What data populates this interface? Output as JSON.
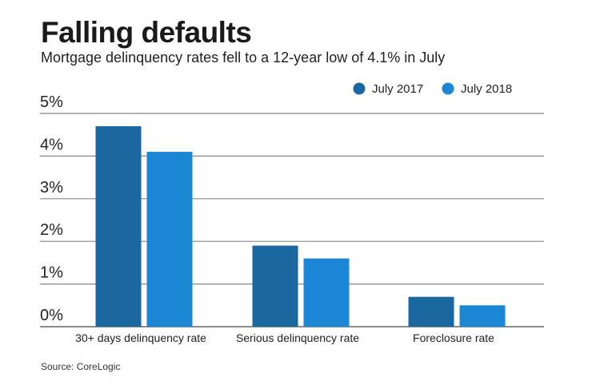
{
  "chart_data": {
    "type": "bar",
    "title": "Falling defaults",
    "subtitle": "Mortgage delinquency rates fell to a 12-year low of 4.1% in July",
    "categories": [
      "30+ days delinquency rate",
      "Serious delinquency rate",
      "Foreclosure rate"
    ],
    "series": [
      {
        "name": "July 2017",
        "values": [
          4.7,
          1.9,
          0.7
        ],
        "color": "#1b67a0"
      },
      {
        "name": "July 2018",
        "values": [
          4.1,
          1.6,
          0.5
        ],
        "color": "#1b87d4"
      }
    ],
    "yticks": [
      "0%",
      "1%",
      "2%",
      "3%",
      "4%",
      "5%"
    ],
    "ylim": [
      0,
      5
    ],
    "xlabel": "",
    "ylabel": "",
    "grid": true,
    "legend_position": "top-right",
    "source": "Source: CoreLogic"
  }
}
